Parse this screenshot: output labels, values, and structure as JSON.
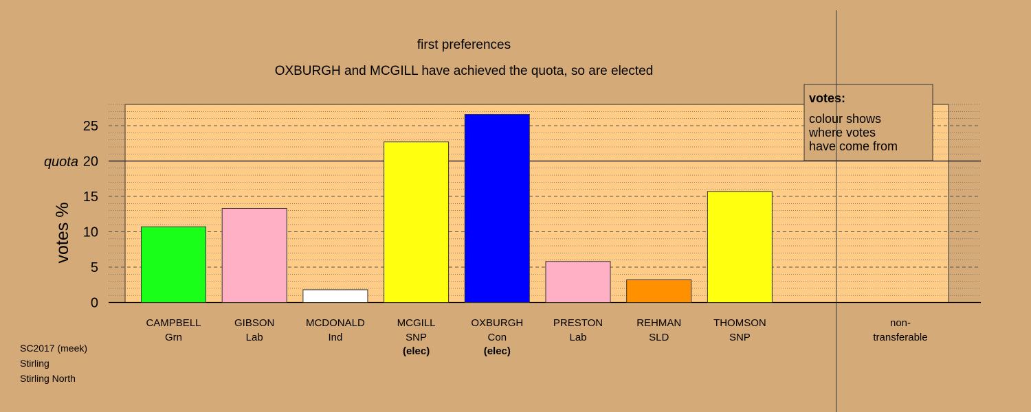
{
  "colors": {
    "background": "#d4aa78",
    "plot_area": "#ffcc88",
    "Grn": "#1aff1a",
    "Lab": "#ffb0c4",
    "Ind": "#ffffff",
    "SNP": "#ffff10",
    "Con": "#0000ff",
    "SLD": "#ff9000"
  },
  "footer": {
    "line1": "SC2017 (meek)",
    "line2": "Stirling",
    "line3": "Stirling North"
  },
  "legend": {
    "title": "votes:",
    "lines": [
      "colour shows",
      "where votes",
      "have come from"
    ]
  },
  "chart_data": {
    "type": "bar",
    "title": "first preferences",
    "subtitle": "OXBURGH and MCGILL have achieved the quota, so are elected",
    "ylabel": "votes %",
    "xlabel": "",
    "ylim": [
      0,
      28
    ],
    "yticks": [
      0,
      5,
      10,
      15,
      20,
      25
    ],
    "quota": 20,
    "quota_label": "quota",
    "grid": true,
    "legend_position": "top-right",
    "categories": [
      {
        "name": "CAMPBELL",
        "party": "Grn",
        "value": 10.7,
        "elected": ""
      },
      {
        "name": "GIBSON",
        "party": "Lab",
        "value": 13.3,
        "elected": ""
      },
      {
        "name": "MCDONALD",
        "party": "Ind",
        "value": 1.8,
        "elected": ""
      },
      {
        "name": "MCGILL",
        "party": "SNP",
        "value": 22.7,
        "elected": "(elec)"
      },
      {
        "name": "OXBURGH",
        "party": "Con",
        "value": 26.6,
        "elected": "(elec)"
      },
      {
        "name": "PRESTON",
        "party": "Lab",
        "value": 5.8,
        "elected": ""
      },
      {
        "name": "REHMAN",
        "party": "SLD",
        "value": 3.2,
        "elected": ""
      },
      {
        "name": "THOMSON",
        "party": "SNP",
        "value": 15.7,
        "elected": ""
      }
    ],
    "non_transferable": {
      "line1": "non-",
      "line2": "transferable",
      "value": 0
    }
  }
}
